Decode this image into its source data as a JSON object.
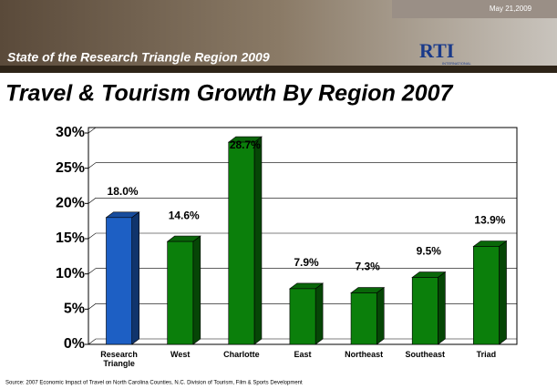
{
  "header": {
    "banner": "State of the Research Triangle Region 2009",
    "date": "May 21,2009",
    "logo": "RTI",
    "logo_sub": "INTERNATIONAL"
  },
  "chart_data": {
    "type": "bar",
    "title": "Travel & Tourism Growth By Region 2007",
    "categories": [
      "Research Triangle",
      "West",
      "Charlotte",
      "East",
      "Northeast",
      "Southeast",
      "Triad"
    ],
    "values": [
      18.0,
      14.6,
      28.7,
      7.9,
      7.3,
      9.5,
      13.9
    ],
    "value_labels": [
      "18.0%",
      "14.6%",
      "28.7%",
      "7.9%",
      "7.3%",
      "9.5%",
      "13.9%"
    ],
    "colors": [
      "#1d5fc4",
      "#0b7f0b",
      "#0b7f0b",
      "#0b7f0b",
      "#0b7f0b",
      "#0b7f0b",
      "#0b7f0b"
    ],
    "ylim": [
      0,
      30
    ],
    "yticks": [
      {
        "value": 0,
        "label": "0%"
      },
      {
        "value": 5,
        "label": "5%"
      },
      {
        "value": 10,
        "label": "10%"
      },
      {
        "value": 15,
        "label": "15%"
      },
      {
        "value": 20,
        "label": "20%"
      },
      {
        "value": 25,
        "label": "25%"
      },
      {
        "value": 30,
        "label": "30%"
      }
    ],
    "grid": true,
    "source": "Source: 2007 Economic Impact of Travel on North Carolina Counties, N.C. Division of Tourism, Film & Sports Development"
  }
}
